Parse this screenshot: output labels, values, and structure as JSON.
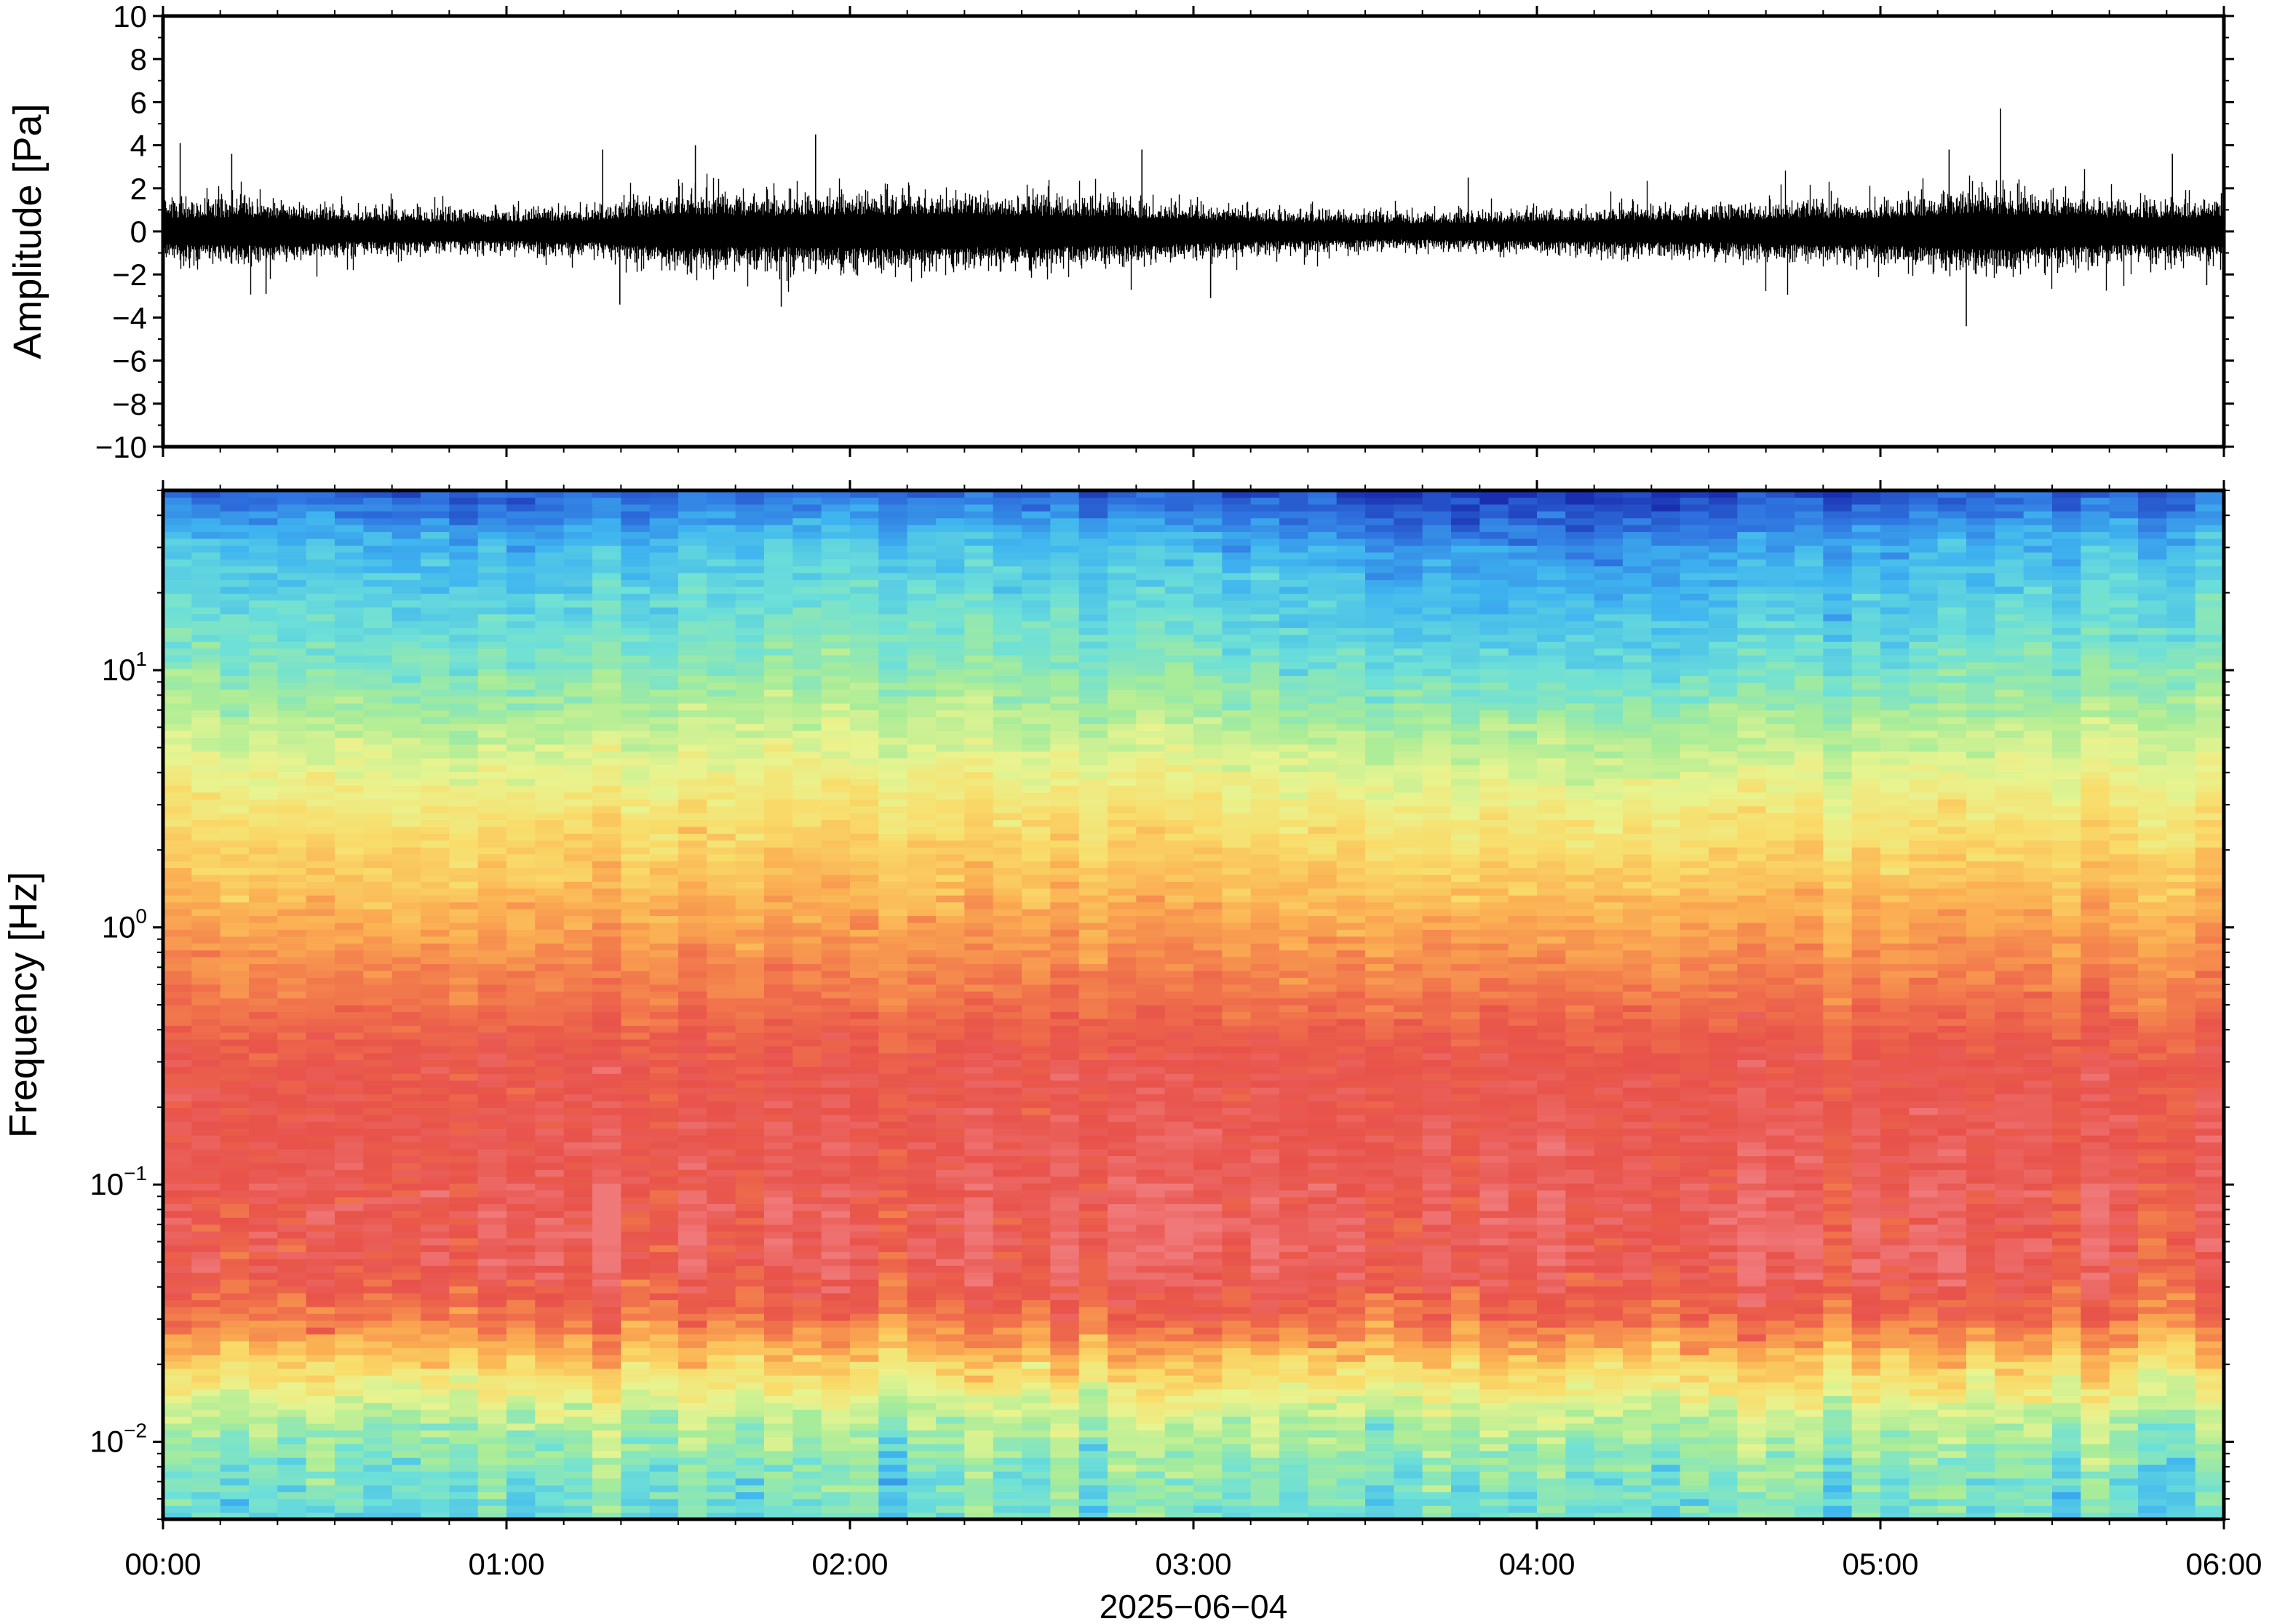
{
  "chart_data": [
    {
      "type": "line",
      "panel": "waveform",
      "ylabel": "Amplitude [Pa]",
      "ylim": [
        -10,
        10
      ],
      "yticks": [
        -10,
        -8,
        -6,
        -4,
        -2,
        0,
        2,
        4,
        6,
        8,
        10
      ],
      "ytick_labels": [
        "−10",
        "−8",
        "−6",
        "−4",
        "−2",
        "0",
        "2",
        "4",
        "6",
        "8",
        "10"
      ],
      "xlim_hours": [
        0,
        6
      ],
      "line_color": "#000000",
      "envelope": {
        "x_hours": [
          0.0,
          0.25,
          0.5,
          0.75,
          1.0,
          1.25,
          1.5,
          1.75,
          2.0,
          2.25,
          2.5,
          2.75,
          3.0,
          3.25,
          3.5,
          3.75,
          4.0,
          4.25,
          4.5,
          4.75,
          5.0,
          5.25,
          5.5,
          5.75,
          6.0
        ],
        "typical_abs_amplitude": [
          1.1,
          1.2,
          0.9,
          0.8,
          0.8,
          0.9,
          1.4,
          1.3,
          1.4,
          1.4,
          1.3,
          1.2,
          1.0,
          0.8,
          0.7,
          0.7,
          0.8,
          0.9,
          0.9,
          1.1,
          1.1,
          1.5,
          1.3,
          1.1,
          1.2
        ]
      },
      "peaks": [
        {
          "t_hours": 0.05,
          "value": 4.1
        },
        {
          "t_hours": 0.2,
          "value": 3.6
        },
        {
          "t_hours": 0.3,
          "value": -2.9
        },
        {
          "t_hours": 1.28,
          "value": 3.8
        },
        {
          "t_hours": 1.33,
          "value": -3.4
        },
        {
          "t_hours": 1.55,
          "value": 4.0
        },
        {
          "t_hours": 1.8,
          "value": -3.5
        },
        {
          "t_hours": 1.9,
          "value": 4.5
        },
        {
          "t_hours": 2.85,
          "value": 3.8
        },
        {
          "t_hours": 3.05,
          "value": -3.1
        },
        {
          "t_hours": 3.8,
          "value": 2.5
        },
        {
          "t_hours": 5.2,
          "value": 3.8
        },
        {
          "t_hours": 5.25,
          "value": -4.4
        },
        {
          "t_hours": 5.35,
          "value": 5.7
        },
        {
          "t_hours": 5.85,
          "value": 3.6
        },
        {
          "t_hours": 5.95,
          "value": -2.5
        }
      ]
    },
    {
      "type": "heatmap",
      "panel": "spectrogram",
      "ylabel": "Frequency [Hz]",
      "yscale": "log",
      "ylim": [
        0.005,
        50
      ],
      "yticks": [
        0.01,
        0.1,
        1,
        10
      ],
      "ytick_labels": [
        {
          "base": "10",
          "exp": "−2"
        },
        {
          "base": "10",
          "exp": "−1"
        },
        {
          "base": "10",
          "exp": "0"
        },
        {
          "base": "10",
          "exp": "1"
        }
      ],
      "xlim_hours": [
        0,
        6
      ],
      "xticks_hours": [
        0,
        1,
        2,
        3,
        4,
        5,
        6
      ],
      "xtick_labels": [
        "00:00",
        "01:00",
        "02:00",
        "03:00",
        "04:00",
        "05:00",
        "06:00"
      ],
      "xlabel": "2025−06−04",
      "colormap": [
        "#1a2fb0",
        "#2f74e0",
        "#3fb5f0",
        "#6de0d8",
        "#a8ec98",
        "#e8f490",
        "#f9dc6a",
        "#fbae52",
        "#f27a4c",
        "#e8524a",
        "#f07878"
      ],
      "level_profile": {
        "freq_hz": [
          0.005,
          0.008,
          0.012,
          0.02,
          0.03,
          0.05,
          0.1,
          0.3,
          1,
          3,
          10,
          30,
          50
        ],
        "level_0_to_1": [
          0.3,
          0.34,
          0.42,
          0.62,
          0.82,
          0.93,
          0.92,
          0.9,
          0.72,
          0.55,
          0.33,
          0.2,
          0.05
        ]
      },
      "time_variation": {
        "x_hours": [
          0,
          1,
          2,
          3,
          4,
          5,
          6
        ],
        "high_freq_offset": [
          0.05,
          0.0,
          0.06,
          0.0,
          -0.06,
          -0.02,
          0.05
        ]
      }
    }
  ]
}
